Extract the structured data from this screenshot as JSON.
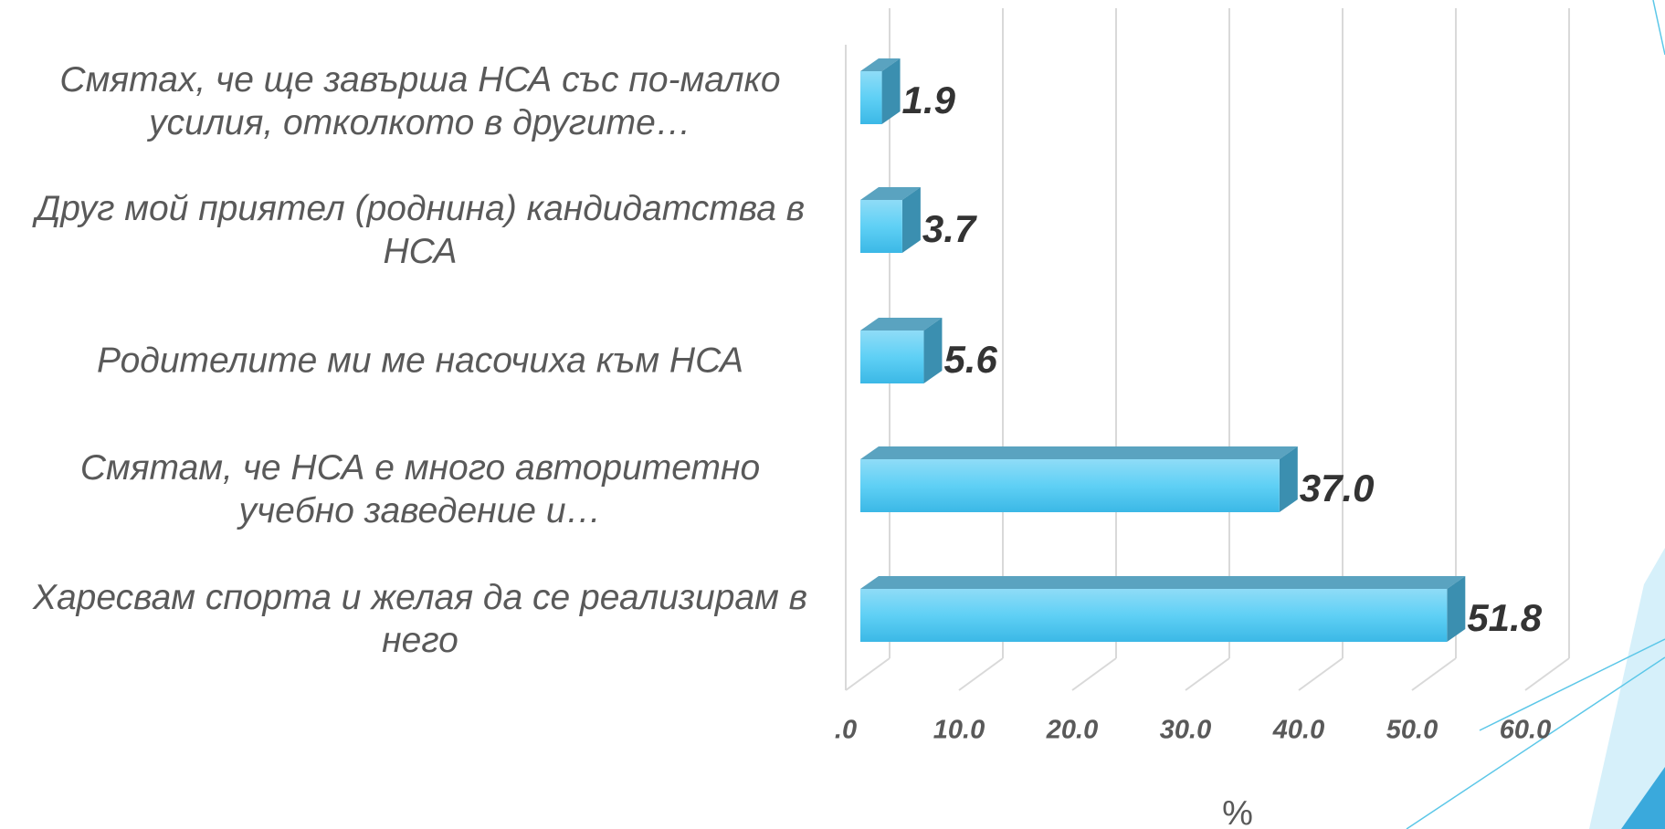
{
  "chart_data": {
    "type": "bar3d-horizontal",
    "categories": [
      "Смятах, че ще завърша НСА със по-малко усилия, отколкото в другите…",
      "Друг мой приятел (роднина) кандидатства в НСА",
      "Родителите ми ме насочиха към НСА",
      "Смятам, че НСА е много авторитетно учебно заведение и…",
      "Харесвам спорта и желая да се реализирам в него"
    ],
    "values": [
      1.9,
      3.7,
      5.6,
      37.0,
      51.8
    ],
    "value_labels": [
      "1.9",
      "3.7",
      "5.6",
      "37.0",
      "51.8"
    ],
    "color": "#4fc8f0",
    "xlim": [
      0,
      60
    ],
    "xticks": [
      {
        "value": 0,
        "label": ".0"
      },
      {
        "value": 10,
        "label": "10.0"
      },
      {
        "value": 20,
        "label": "20.0"
      },
      {
        "value": 30,
        "label": "30.0"
      },
      {
        "value": 40,
        "label": "40.0"
      },
      {
        "value": 50,
        "label": "50.0"
      },
      {
        "value": 60,
        "label": "60.0"
      }
    ],
    "xlabel": "%",
    "grid": true
  }
}
